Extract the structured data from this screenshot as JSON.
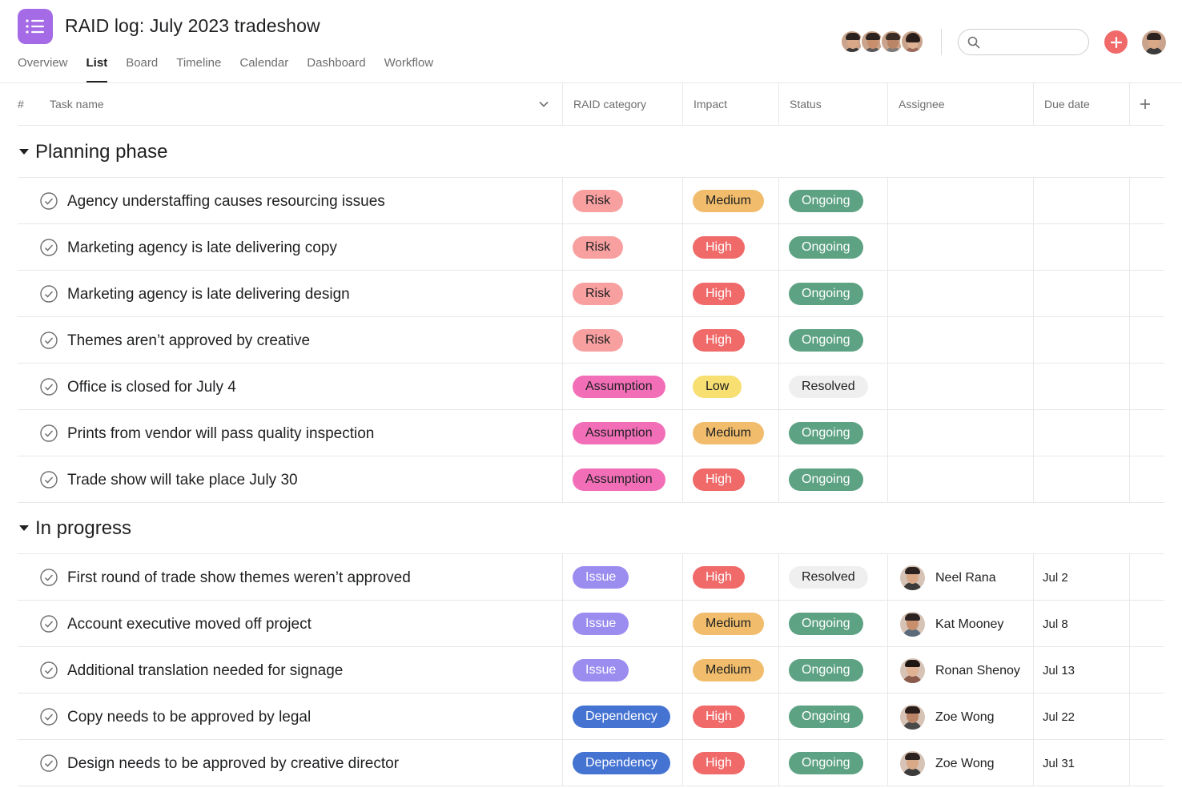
{
  "project": {
    "title": "RAID log: July 2023 tradeshow"
  },
  "tabs": [
    "Overview",
    "List",
    "Board",
    "Timeline",
    "Calendar",
    "Dashboard",
    "Workflow"
  ],
  "active_tab": "List",
  "search": {
    "placeholder": "",
    "value": ""
  },
  "columns": {
    "number": "#",
    "task_name": "Task name",
    "raid": "RAID category",
    "impact": "Impact",
    "status": "Status",
    "assignee": "Assignee",
    "due": "Due date"
  },
  "colors": {
    "Risk": "#f8a0a0",
    "Assumption": "#f26fb8",
    "Issue": "#9b8cf0",
    "Dependency": "#4573d2",
    "Medium": "#f1bd6c",
    "High": "#f06a6a",
    "Low": "#f8df72",
    "Ongoing": "#5da283",
    "Resolved": "#efefef",
    "accent": "#a56be6",
    "add": "#f06a6a"
  },
  "sections": [
    {
      "title": "Planning phase",
      "tasks": [
        {
          "name": "Agency understaffing causes resourcing issues",
          "raid": "Risk",
          "impact": "Medium",
          "status": "Ongoing",
          "assignee": "",
          "due": ""
        },
        {
          "name": "Marketing agency is late delivering copy",
          "raid": "Risk",
          "impact": "High",
          "status": "Ongoing",
          "assignee": "",
          "due": ""
        },
        {
          "name": "Marketing agency is late delivering design",
          "raid": "Risk",
          "impact": "High",
          "status": "Ongoing",
          "assignee": "",
          "due": ""
        },
        {
          "name": "Themes aren’t approved by creative",
          "raid": "Risk",
          "impact": "High",
          "status": "Ongoing",
          "assignee": "",
          "due": ""
        },
        {
          "name": "Office is closed for July 4",
          "raid": "Assumption",
          "impact": "Low",
          "status": "Resolved",
          "assignee": "",
          "due": ""
        },
        {
          "name": "Prints from vendor will pass quality inspection",
          "raid": "Assumption",
          "impact": "Medium",
          "status": "Ongoing",
          "assignee": "",
          "due": ""
        },
        {
          "name": "Trade show will take place July 30",
          "raid": "Assumption",
          "impact": "High",
          "status": "Ongoing",
          "assignee": "",
          "due": ""
        }
      ]
    },
    {
      "title": "In progress",
      "tasks": [
        {
          "name": "First round of trade show themes weren’t approved",
          "raid": "Issue",
          "impact": "High",
          "status": "Resolved",
          "assignee": "Neel Rana",
          "due": "Jul 2"
        },
        {
          "name": "Account executive moved off project",
          "raid": "Issue",
          "impact": "Medium",
          "status": "Ongoing",
          "assignee": "Kat Mooney",
          "due": "Jul 8"
        },
        {
          "name": "Additional translation needed for signage",
          "raid": "Issue",
          "impact": "Medium",
          "status": "Ongoing",
          "assignee": "Ronan Shenoy",
          "due": "Jul 13"
        },
        {
          "name": "Copy needs to be approved by legal",
          "raid": "Dependency",
          "impact": "High",
          "status": "Ongoing",
          "assignee": "Zoe Wong",
          "due": "Jul 22"
        },
        {
          "name": "Design needs to be approved by creative director",
          "raid": "Dependency",
          "impact": "High",
          "status": "Ongoing",
          "assignee": "Zoe Wong",
          "due": "Jul 31"
        }
      ]
    }
  ]
}
